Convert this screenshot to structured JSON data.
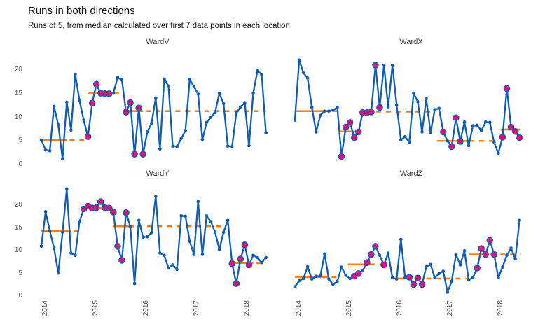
{
  "title": "Runs in both directions",
  "subtitle": "Runs of 5, from median calculated over first 7 data points in each location",
  "colors": {
    "line": "#0f5cb4",
    "highlight_point": "#d0177e",
    "median_line": "#ee8022",
    "axis_text": "#4f4f4f",
    "strip_text": "#3d3d3d",
    "title_text": "#141414"
  },
  "axes": {
    "x_tick_labels": [
      "2014",
      "2015",
      "2016",
      "2017",
      "2018"
    ],
    "y_tick_values": [
      0,
      5,
      10,
      15,
      20
    ]
  },
  "chart_data": [
    {
      "type": "line",
      "title": "WardV",
      "x_start": "2014-01",
      "x_interval": "month",
      "n_points": 54,
      "ylim": [
        0,
        22.5
      ],
      "values": [
        5.2,
        3.1,
        2.9,
        12.3,
        8.4,
        1.2,
        13.2,
        7.3,
        19.1,
        13.6,
        9.4,
        5.9,
        13.0,
        17.0,
        15.1,
        15.0,
        15.0,
        15.1,
        18.4,
        17.9,
        11.1,
        13.1,
        2.2,
        12.0,
        2.2,
        6.9,
        8.7,
        14.1,
        3.3,
        18.1,
        16.6,
        3.9,
        3.8,
        5.5,
        7.2,
        18.0,
        16.5,
        14.9,
        5.3,
        8.9,
        10.0,
        11.0,
        15.1,
        12.9,
        3.9,
        3.8,
        10.9,
        12.2,
        13.1,
        4.0,
        15.1,
        19.9,
        19.0,
        6.7
      ],
      "highlighted_indices": [
        12,
        13,
        14,
        15,
        16,
        17,
        21,
        22,
        23,
        24,
        25
      ],
      "median_segments": [
        {
          "value": 5.2,
          "from_index": 1,
          "to_index": 11.5,
          "solid_to_index": 7
        },
        {
          "value": 15.2,
          "from_index": 12,
          "to_index": 19.5,
          "solid_to_index": 17.5
        },
        {
          "value": 11.3,
          "from_index": 20.5,
          "to_index": 54,
          "solid_to_index": 25
        }
      ]
    },
    {
      "type": "line",
      "title": "WardX",
      "x_start": "2014-01",
      "x_interval": "month",
      "n_points": 54,
      "ylim": [
        0,
        22.5
      ],
      "values": [
        9.4,
        22.1,
        19.4,
        18.3,
        12.1,
        6.9,
        10.4,
        11.3,
        11.3,
        11.5,
        12.1,
        1.7,
        7.9,
        8.9,
        5.7,
        6.9,
        11.0,
        11.0,
        11.1,
        21.0,
        12.1,
        21.0,
        12.2,
        21.0,
        12.6,
        5.2,
        5.9,
        4.7,
        15.1,
        13.3,
        6.9,
        13.9,
        6.8,
        11.6,
        11.9,
        6.9,
        5.0,
        3.8,
        9.9,
        4.9,
        9.0,
        4.0,
        8.2,
        8.3,
        7.2,
        9.0,
        8.9,
        4.7,
        2.4,
        5.8,
        16.1,
        7.9,
        7.0,
        5.7
      ],
      "highlighted_indices": [
        12,
        13,
        14,
        15,
        16,
        17,
        18,
        19,
        20,
        21,
        36,
        38,
        39,
        40,
        50,
        51,
        52,
        53,
        54
      ],
      "median_segments": [
        {
          "value": 11.3,
          "from_index": 1,
          "to_index": 11.3,
          "solid_to_index": 9.5
        },
        {
          "value": 7.0,
          "from_index": 11.7,
          "to_index": 16.5,
          "solid_to_index": 16.5
        },
        {
          "value": 11.2,
          "from_index": 16.5,
          "to_index": 34,
          "solid_to_index": 19.5
        },
        {
          "value": 5.0,
          "from_index": 34.5,
          "to_index": 47.5,
          "solid_to_index": 41.5
        },
        {
          "value": 7.4,
          "from_index": 49.5,
          "to_index": 54.2,
          "solid_to_index": 54.2
        }
      ]
    },
    {
      "type": "line",
      "title": "WardY",
      "x_start": "2014-01",
      "x_interval": "month",
      "n_points": 54,
      "ylim": [
        0,
        24.5
      ],
      "values": [
        11.0,
        18.6,
        14.4,
        10.6,
        5.1,
        14.1,
        23.6,
        9.5,
        9.0,
        16.4,
        19.2,
        19.8,
        19.4,
        19.5,
        20.8,
        19.5,
        19.4,
        18.5,
        11.0,
        7.9,
        18.4,
        15.3,
        2.8,
        16.7,
        13.0,
        13.1,
        14.0,
        22.0,
        9.5,
        9.0,
        6.2,
        6.9,
        5.9,
        17.7,
        17.6,
        12.1,
        9.2,
        20.8,
        9.2,
        17.7,
        16.4,
        14.1,
        10.3,
        14.1,
        16.7,
        7.2,
        2.8,
        8.2,
        11.3,
        6.9,
        9.0,
        8.5,
        7.4,
        8.5
      ],
      "highlighted_indices": [
        11,
        12,
        13,
        14,
        15,
        16,
        17,
        18,
        19,
        20,
        21,
        46,
        47,
        48,
        49,
        50
      ],
      "median_segments": [
        {
          "value": 14.4,
          "from_index": 1,
          "to_index": 10,
          "solid_to_index": 8
        },
        {
          "value": 19.4,
          "from_index": 10.5,
          "to_index": 17.5,
          "solid_to_index": 17.5
        },
        {
          "value": 15.4,
          "from_index": 18,
          "to_index": 44.5,
          "solid_to_index": 23
        },
        {
          "value": 7.3,
          "from_index": 45.5,
          "to_index": 53.5,
          "solid_to_index": 51
        }
      ]
    },
    {
      "type": "line",
      "title": "WardZ",
      "x_start": "2014-01",
      "x_interval": "month",
      "n_points": 54,
      "ylim": [
        0,
        24.5
      ],
      "values": [
        2.1,
        3.4,
        3.9,
        6.5,
        3.8,
        4.4,
        4.5,
        9.3,
        3.8,
        2.6,
        3.3,
        6.4,
        4.6,
        3.9,
        4.4,
        5.0,
        5.6,
        7.4,
        9.2,
        11.0,
        9.0,
        6.9,
        9.5,
        4.1,
        3.8,
        12.5,
        4.1,
        4.2,
        2.6,
        4.0,
        2.6,
        6.5,
        7.0,
        4.1,
        5.0,
        5.5,
        0.9,
        3.3,
        9.2,
        6.9,
        10.0,
        3.6,
        4.1,
        6.2,
        10.5,
        9.2,
        12.3,
        9.2,
        4.1,
        6.4,
        9.0,
        10.6,
        8.2,
        16.7
      ],
      "highlighted_indices": [
        15,
        16,
        18,
        19,
        20,
        22,
        28,
        29,
        30,
        31,
        44,
        45,
        46,
        47,
        48
      ],
      "median_segments": [
        {
          "value": 4.2,
          "from_index": 1,
          "to_index": 11,
          "solid_to_index": 9
        },
        {
          "value": 7.0,
          "from_index": 13.5,
          "to_index": 23.5,
          "solid_to_index": 18
        },
        {
          "value": 3.9,
          "from_index": 24,
          "to_index": 42,
          "solid_to_index": 29
        },
        {
          "value": 9.2,
          "from_index": 42,
          "to_index": 54.3,
          "solid_to_index": 46.5
        }
      ]
    }
  ]
}
